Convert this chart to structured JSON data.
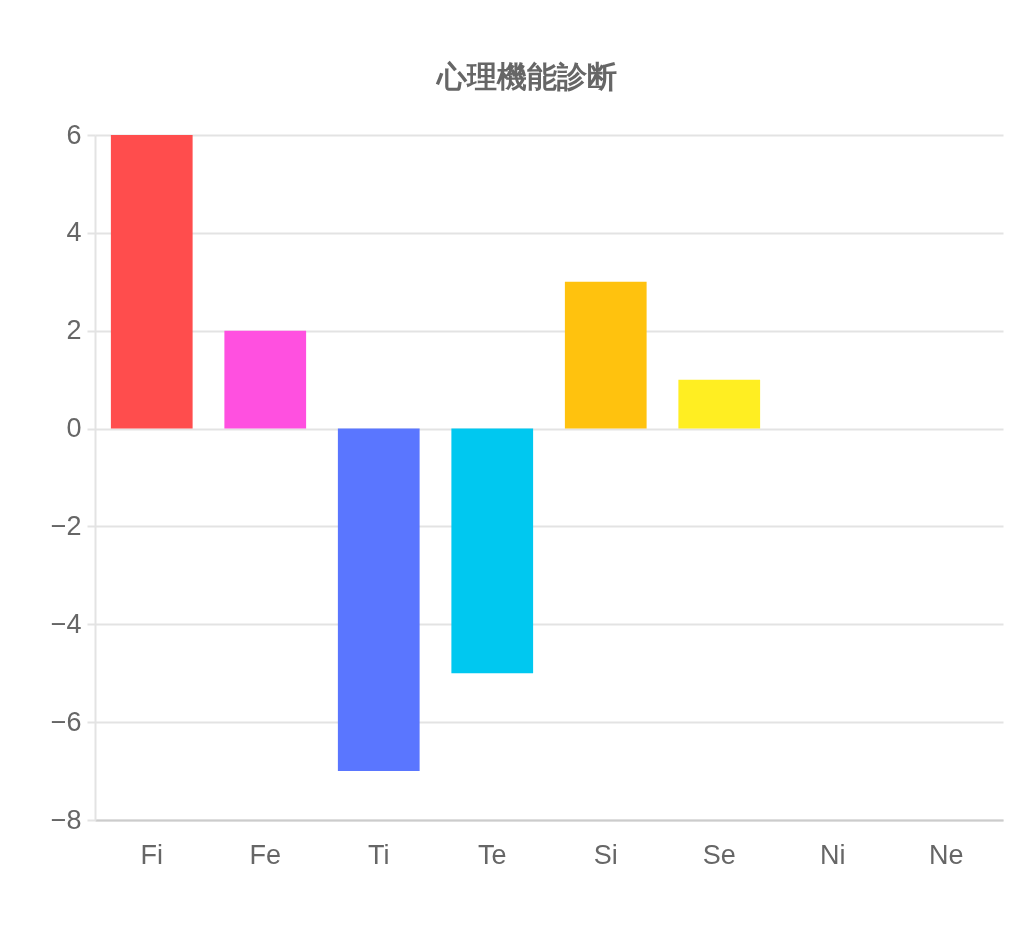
{
  "chart_data": {
    "type": "bar",
    "title": "心理機能診断",
    "categories": [
      "Fi",
      "Fe",
      "Ti",
      "Te",
      "Si",
      "Se",
      "Ni",
      "Ne"
    ],
    "values": [
      6,
      2,
      -7,
      -5,
      3,
      1,
      0,
      0
    ],
    "colors": [
      "#ff4d4d",
      "#ff50e0",
      "#5a76ff",
      "#00c8f0",
      "#ffc20e",
      "#ffee22",
      "#ffee22",
      "#ffee22"
    ],
    "ylim": [
      -8,
      6
    ],
    "yticks": [
      -8,
      -6,
      -4,
      -2,
      0,
      2,
      4,
      6
    ],
    "grid": "y"
  }
}
